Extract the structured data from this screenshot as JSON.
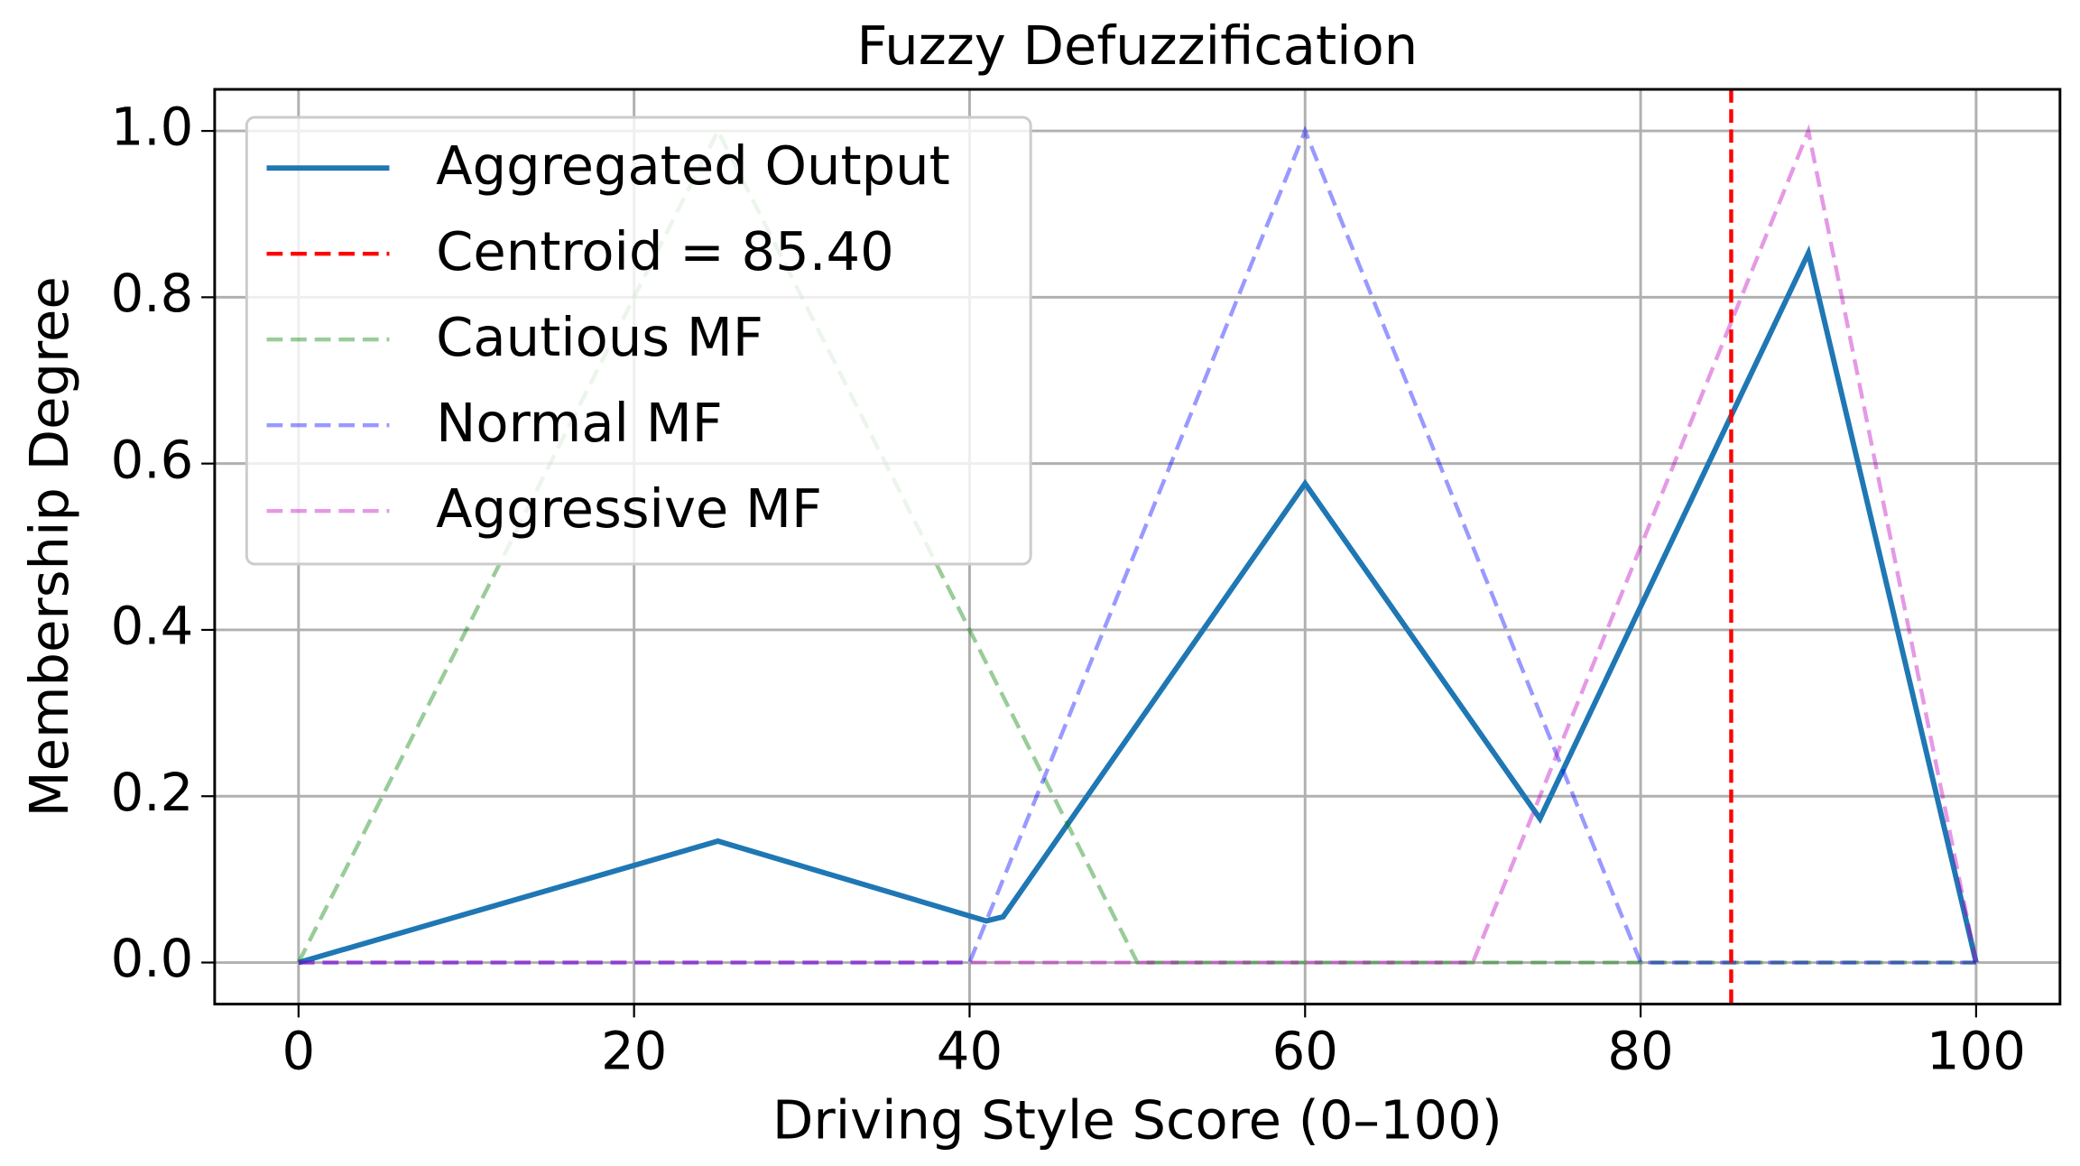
{
  "chart_data": {
    "type": "line",
    "title": "Fuzzy Defuzzification",
    "xlabel": "Driving Style Score (0–100)",
    "ylabel": "Membership Degree",
    "xlim": [
      -5,
      105
    ],
    "ylim": [
      -0.05,
      1.05
    ],
    "xticks": [
      0,
      20,
      40,
      60,
      80,
      100
    ],
    "yticks": [
      {
        "value": 0,
        "label": "0.0"
      },
      {
        "value": 0.2,
        "label": "0.2"
      },
      {
        "value": 0.4,
        "label": "0.4"
      },
      {
        "value": 0.6,
        "label": "0.6"
      },
      {
        "value": 0.8,
        "label": "0.8"
      },
      {
        "value": 1,
        "label": "1.0"
      }
    ],
    "grid": true,
    "legend": "upper left",
    "series": [
      {
        "name": "Aggregated Output",
        "color": "#1f77b4",
        "dash": false,
        "opacity": 1,
        "x": [
          0,
          25,
          41,
          42,
          60,
          74,
          90,
          100
        ],
        "values": [
          0,
          0.146,
          0.05,
          0.055,
          0.576,
          0.173,
          0.853,
          0
        ]
      },
      {
        "name": "Cautious MF",
        "color": "#008000",
        "dash": true,
        "opacity": 0.4,
        "x": [
          0,
          25,
          50,
          100
        ],
        "values": [
          0,
          1,
          0,
          0
        ]
      },
      {
        "name": "Normal MF",
        "color": "#0000ff",
        "dash": true,
        "opacity": 0.4,
        "x": [
          0,
          40,
          60,
          80,
          100
        ],
        "values": [
          0,
          0,
          1,
          0,
          0
        ]
      },
      {
        "name": "Aggressive MF",
        "color": "#bf00bf",
        "dash": true,
        "opacity": 0.4,
        "x": [
          0,
          70,
          90,
          100
        ],
        "values": [
          0,
          0,
          1,
          0
        ]
      }
    ],
    "vlines": [
      {
        "name": "Centroid = 85.40",
        "x": 85.4,
        "color": "#ff0000"
      }
    ]
  }
}
